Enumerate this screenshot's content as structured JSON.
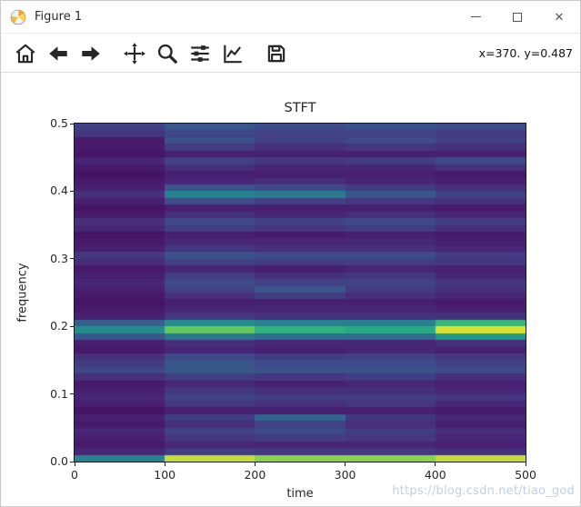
{
  "window": {
    "title": "Figure 1",
    "close_glyph": "✕"
  },
  "toolbar": {
    "status": "x=370. y=0.487",
    "icons": [
      "home",
      "back",
      "forward",
      "pan",
      "zoom",
      "configure-subplots",
      "edit-parameters",
      "save"
    ]
  },
  "watermark": "https://blog.csdn.net/tiao_god",
  "colors": {
    "toolbar_icon": "#262626",
    "axes_text": "#262626",
    "watermark": "#c3cfdf",
    "viridis_stops": [
      [
        0,
        68,
        1,
        84
      ],
      [
        0.125,
        72,
        40,
        120
      ],
      [
        0.25,
        62,
        74,
        137
      ],
      [
        0.375,
        49,
        104,
        142
      ],
      [
        0.5,
        38,
        130,
        142
      ],
      [
        0.625,
        31,
        158,
        137
      ],
      [
        0.75,
        53,
        183,
        121
      ],
      [
        0.875,
        110,
        206,
        88
      ],
      [
        1,
        253,
        231,
        37
      ]
    ]
  },
  "chart_data": {
    "type": "heatmap",
    "title": "STFT",
    "xlabel": "time",
    "ylabel": "frequency",
    "xlim": [
      0,
      500
    ],
    "ylim": [
      0,
      0.5
    ],
    "colormap": "viridis",
    "grid": false,
    "xticks": [
      {
        "label": "0",
        "value": 0
      },
      {
        "label": "100",
        "value": 100
      },
      {
        "label": "200",
        "value": 200
      },
      {
        "label": "300",
        "value": 300
      },
      {
        "label": "400",
        "value": 400
      },
      {
        "label": "500",
        "value": 500
      }
    ],
    "yticks": [
      {
        "label": "0.0",
        "value": 0.0
      },
      {
        "label": "0.1",
        "value": 0.1
      },
      {
        "label": "0.2",
        "value": 0.2
      },
      {
        "label": "0.3",
        "value": 0.3
      },
      {
        "label": "0.4",
        "value": 0.4
      },
      {
        "label": "0.5",
        "value": 0.5
      }
    ],
    "time_segments": [
      [
        0,
        100
      ],
      [
        100,
        200
      ],
      [
        200,
        300
      ],
      [
        300,
        400
      ],
      [
        400,
        500
      ]
    ],
    "freq_bins": 50,
    "row_order": "top-to-bottom: frequency 0.5 down to 0.0",
    "values_note": "rows = 50 frequency bins (0.5 at top to 0.0 at bottom), cols = 5 time segments; normalized magnitude 0-1, viridis colormap; bright bands at f=0.2 and f=0.0",
    "values": [
      [
        0.22,
        0.3,
        0.25,
        0.28,
        0.25
      ],
      [
        0.18,
        0.24,
        0.22,
        0.22,
        0.2
      ],
      [
        0.08,
        0.28,
        0.22,
        0.25,
        0.22
      ],
      [
        0.08,
        0.2,
        0.15,
        0.18,
        0.15
      ],
      [
        0.07,
        0.1,
        0.1,
        0.1,
        0.1
      ],
      [
        0.12,
        0.22,
        0.18,
        0.2,
        0.26
      ],
      [
        0.08,
        0.15,
        0.12,
        0.12,
        0.16
      ],
      [
        0.06,
        0.1,
        0.1,
        0.1,
        0.08
      ],
      [
        0.08,
        0.12,
        0.15,
        0.12,
        0.1
      ],
      [
        0.1,
        0.3,
        0.25,
        0.2,
        0.15
      ],
      [
        0.15,
        0.5,
        0.46,
        0.3,
        0.22
      ],
      [
        0.1,
        0.26,
        0.22,
        0.18,
        0.15
      ],
      [
        0.06,
        0.1,
        0.1,
        0.1,
        0.08
      ],
      [
        0.08,
        0.15,
        0.12,
        0.15,
        0.12
      ],
      [
        0.15,
        0.25,
        0.22,
        0.25,
        0.2
      ],
      [
        0.12,
        0.2,
        0.18,
        0.2,
        0.15
      ],
      [
        0.06,
        0.1,
        0.08,
        0.1,
        0.08
      ],
      [
        0.08,
        0.12,
        0.12,
        0.12,
        0.1
      ],
      [
        0.1,
        0.18,
        0.15,
        0.15,
        0.12
      ],
      [
        0.18,
        0.28,
        0.25,
        0.25,
        0.2
      ],
      [
        0.14,
        0.22,
        0.2,
        0.2,
        0.18
      ],
      [
        0.08,
        0.12,
        0.1,
        0.12,
        0.1
      ],
      [
        0.1,
        0.2,
        0.15,
        0.18,
        0.12
      ],
      [
        0.12,
        0.25,
        0.22,
        0.22,
        0.18
      ],
      [
        0.1,
        0.22,
        0.3,
        0.2,
        0.15
      ],
      [
        0.08,
        0.15,
        0.2,
        0.15,
        0.12
      ],
      [
        0.06,
        0.1,
        0.1,
        0.1,
        0.08
      ],
      [
        0.08,
        0.12,
        0.12,
        0.12,
        0.1
      ],
      [
        0.1,
        0.18,
        0.15,
        0.15,
        0.15
      ],
      [
        0.35,
        0.55,
        0.5,
        0.5,
        0.75
      ],
      [
        0.55,
        0.85,
        0.72,
        0.68,
        0.97
      ],
      [
        0.3,
        0.45,
        0.4,
        0.4,
        0.6
      ],
      [
        0.1,
        0.15,
        0.12,
        0.12,
        0.15
      ],
      [
        0.08,
        0.12,
        0.1,
        0.12,
        0.1
      ],
      [
        0.15,
        0.25,
        0.2,
        0.22,
        0.18
      ],
      [
        0.2,
        0.3,
        0.25,
        0.25,
        0.22
      ],
      [
        0.24,
        0.3,
        0.28,
        0.28,
        0.25
      ],
      [
        0.15,
        0.2,
        0.18,
        0.2,
        0.15
      ],
      [
        0.08,
        0.12,
        0.1,
        0.12,
        0.1
      ],
      [
        0.1,
        0.18,
        0.15,
        0.15,
        0.12
      ],
      [
        0.12,
        0.22,
        0.2,
        0.2,
        0.18
      ],
      [
        0.1,
        0.18,
        0.15,
        0.18,
        0.12
      ],
      [
        0.06,
        0.1,
        0.1,
        0.1,
        0.08
      ],
      [
        0.1,
        0.2,
        0.36,
        0.18,
        0.12
      ],
      [
        0.08,
        0.15,
        0.22,
        0.15,
        0.1
      ],
      [
        0.12,
        0.22,
        0.25,
        0.2,
        0.15
      ],
      [
        0.1,
        0.18,
        0.2,
        0.18,
        0.12
      ],
      [
        0.08,
        0.12,
        0.12,
        0.12,
        0.1
      ],
      [
        0.12,
        0.2,
        0.18,
        0.18,
        0.15
      ],
      [
        0.5,
        0.95,
        0.9,
        0.9,
        0.95
      ]
    ]
  }
}
